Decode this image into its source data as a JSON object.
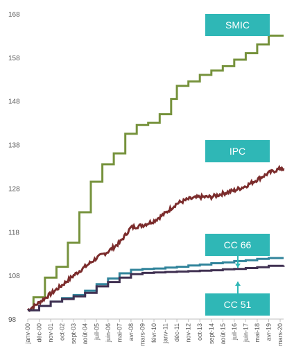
{
  "chart_data": {
    "type": "line",
    "title": "",
    "xlabel": "",
    "ylabel": "",
    "ylim": [
      98,
      168
    ],
    "yticks": [
      98,
      108,
      118,
      128,
      138,
      148,
      158,
      168
    ],
    "xticks": [
      "janv-00",
      "déc-00",
      "nov-01",
      "oct-02",
      "sept-03",
      "août-04",
      "juil-05",
      "juin-06",
      "mai-07",
      "avr-08",
      "mars-09",
      "févr-10",
      "janv-11",
      "déc-11",
      "nov-12",
      "oct-13",
      "sept-14",
      "août-15",
      "juil-16",
      "juin-17",
      "mai-18",
      "avr-19",
      "mars-20"
    ],
    "grid": false,
    "series": [
      {
        "name": "SMIC",
        "color": "#76923c",
        "label_color": "#2fb7b6",
        "points": [
          [
            0,
            100.0
          ],
          [
            0.5,
            103.0
          ],
          [
            1.5,
            107.5
          ],
          [
            2.5,
            110.0
          ],
          [
            3.5,
            115.5
          ],
          [
            4.5,
            122.5
          ],
          [
            5.5,
            129.5
          ],
          [
            6.5,
            133.5
          ],
          [
            7.5,
            136.0
          ],
          [
            8.5,
            140.5
          ],
          [
            9.5,
            142.5
          ],
          [
            10.5,
            143.0
          ],
          [
            11.5,
            145.0
          ],
          [
            12.5,
            148.5
          ],
          [
            13,
            151.5
          ],
          [
            14,
            152.5
          ],
          [
            15,
            154.0
          ],
          [
            16,
            155.0
          ],
          [
            17,
            156.0
          ],
          [
            18,
            157.5
          ],
          [
            19,
            159.0
          ],
          [
            20,
            161.0
          ],
          [
            21,
            163.0
          ],
          [
            22.3,
            163.0
          ]
        ]
      },
      {
        "name": "IPC",
        "color": "#7b2c2c",
        "label_color": "#2fb7b6",
        "points": [
          [
            0,
            100.0
          ],
          [
            1,
            101.8
          ],
          [
            2,
            103.8
          ],
          [
            3,
            105.8
          ],
          [
            4,
            108.0
          ],
          [
            5,
            110.0
          ],
          [
            6,
            112.0
          ],
          [
            7,
            113.5
          ],
          [
            8,
            115.5
          ],
          [
            9,
            119.0
          ],
          [
            10,
            119.5
          ],
          [
            11,
            120.5
          ],
          [
            12,
            122.3
          ],
          [
            13,
            124.5
          ],
          [
            14,
            125.5
          ],
          [
            15,
            126.0
          ],
          [
            16,
            126.0
          ],
          [
            17,
            126.8
          ],
          [
            18,
            127.5
          ],
          [
            19,
            128.5
          ],
          [
            20,
            130.0
          ],
          [
            21,
            131.5
          ],
          [
            22,
            132.5
          ],
          [
            22.3,
            132.3
          ]
        ]
      },
      {
        "name": "CC 66",
        "color": "#31849b",
        "label_color": "#2fb7b6",
        "points": [
          [
            0,
            100.0
          ],
          [
            1,
            101.0
          ],
          [
            2,
            102.0
          ],
          [
            3,
            102.8
          ],
          [
            4,
            103.5
          ],
          [
            5,
            104.5
          ],
          [
            6,
            106.0
          ],
          [
            7,
            107.3
          ],
          [
            8,
            108.5
          ],
          [
            9,
            109.3
          ],
          [
            10,
            109.5
          ],
          [
            11,
            109.6
          ],
          [
            12,
            109.8
          ],
          [
            13,
            110.0
          ],
          [
            14,
            110.3
          ],
          [
            15,
            110.5
          ],
          [
            16,
            110.8
          ],
          [
            17,
            111.0
          ],
          [
            18,
            111.3
          ],
          [
            19,
            111.5
          ],
          [
            20,
            111.8
          ],
          [
            21,
            112.0
          ],
          [
            22.3,
            112.0
          ]
        ]
      },
      {
        "name": "CC 51",
        "color": "#403152",
        "label_color": "#2fb7b6",
        "points": [
          [
            0,
            100.0
          ],
          [
            1,
            101.0
          ],
          [
            2,
            102.0
          ],
          [
            3,
            102.6
          ],
          [
            4,
            103.2
          ],
          [
            5,
            104.0
          ],
          [
            6,
            105.5
          ],
          [
            7,
            106.5
          ],
          [
            8,
            107.5
          ],
          [
            9,
            108.3
          ],
          [
            10,
            108.6
          ],
          [
            11,
            108.7
          ],
          [
            12,
            108.8
          ],
          [
            13,
            108.9
          ],
          [
            14,
            109.0
          ],
          [
            15,
            109.1
          ],
          [
            16,
            109.2
          ],
          [
            17,
            109.4
          ],
          [
            18,
            109.5
          ],
          [
            19,
            109.7
          ],
          [
            20,
            109.9
          ],
          [
            21,
            110.2
          ],
          [
            22.3,
            110.3
          ]
        ]
      }
    ]
  }
}
